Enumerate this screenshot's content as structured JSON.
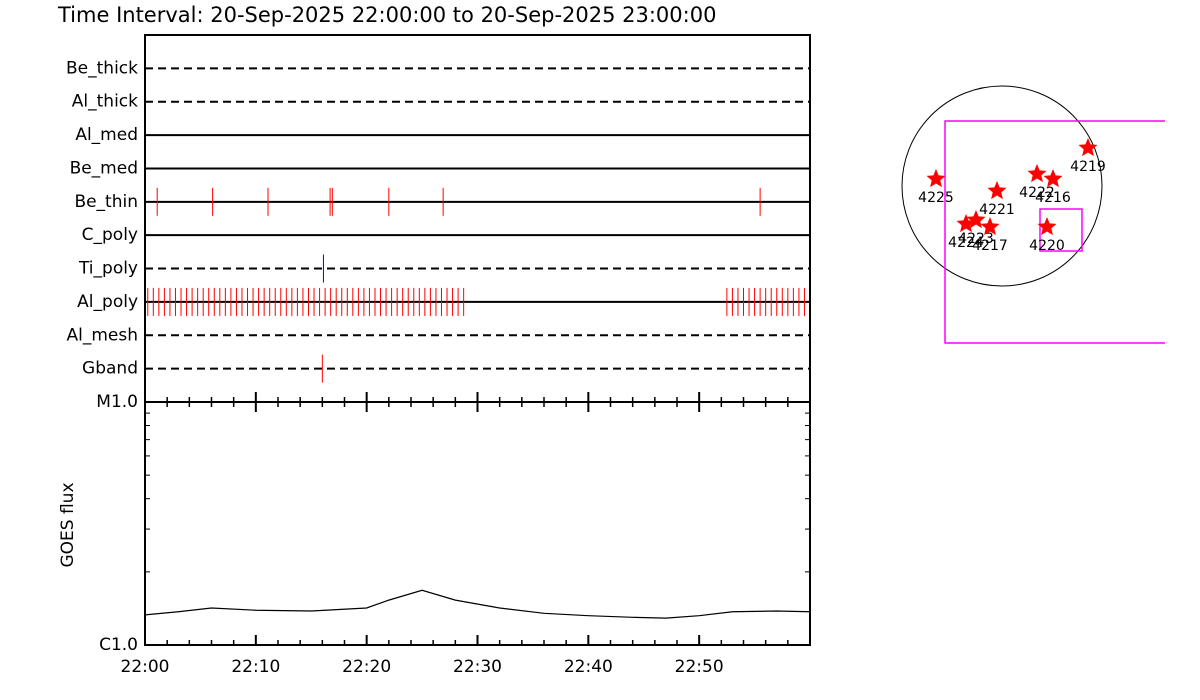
{
  "chart_data": [
    {
      "type": "timeline",
      "title": "Time Interval: 20-Sep-2025 22:00:00 to 20-Sep-2025 23:00:00",
      "xlim": [
        0,
        60
      ],
      "rows": [
        {
          "name": "Be_thick",
          "line": "dashed",
          "color": "#ff0000",
          "events": []
        },
        {
          "name": "Al_thick",
          "line": "dashed",
          "color": "#ff0000",
          "events": []
        },
        {
          "name": "Al_med",
          "line": "solid",
          "color": "#ff0000",
          "events": []
        },
        {
          "name": "Be_med",
          "line": "solid",
          "color": "#ff0000",
          "events": []
        },
        {
          "name": "Be_thin",
          "line": "solid",
          "color": "#ff0000",
          "events": [
            1.1,
            6.1,
            11.1,
            16.7,
            16.9,
            22.0,
            26.9,
            55.5
          ]
        },
        {
          "name": "C_poly",
          "line": "solid",
          "color": "#ff0000",
          "events": []
        },
        {
          "name": "Ti_poly",
          "line": "dashed",
          "color": "#0000ff",
          "events": [
            16.1
          ]
        },
        {
          "name": "Al_poly",
          "line": "solid",
          "color": "#ff0000",
          "events": [
            0.25,
            0.75,
            1.25,
            1.75,
            2.25,
            2.75,
            3.25,
            3.75,
            4.25,
            4.75,
            5.25,
            5.75,
            6.25,
            6.75,
            7.25,
            7.75,
            8.25,
            8.75,
            9.25,
            9.75,
            10.25,
            10.75,
            11.25,
            11.75,
            12.25,
            12.75,
            13.25,
            13.75,
            14.25,
            14.75,
            15.25,
            15.75,
            16.25,
            16.75,
            17.25,
            17.75,
            18.25,
            18.75,
            19.25,
            19.75,
            20.25,
            20.75,
            21.25,
            21.75,
            22.25,
            22.75,
            23.25,
            23.75,
            24.25,
            24.75,
            25.25,
            25.75,
            26.25,
            26.75,
            27.25,
            27.75,
            28.25,
            28.75,
            52.5,
            53.0,
            53.5,
            54.0,
            54.5,
            55.0,
            55.5,
            56.0,
            56.5,
            57.0,
            57.5,
            58.0,
            58.5,
            59.0,
            59.5
          ]
        },
        {
          "name": "Al_mesh",
          "line": "dashed",
          "color": "#ff0000",
          "events": []
        },
        {
          "name": "Gband",
          "line": "dashed",
          "color": "#ff0000",
          "events": [
            16.0
          ]
        }
      ]
    },
    {
      "type": "line",
      "y_label": "GOES flux",
      "log_scale": true,
      "color": "#000000",
      "x": [
        0,
        3,
        6,
        10,
        15,
        20,
        22,
        25,
        28,
        32,
        36,
        40,
        44,
        47,
        50,
        53,
        57,
        60
      ],
      "values": [
        1.33e-06,
        1.37e-06,
        1.42e-06,
        1.39e-06,
        1.38e-06,
        1.42e-06,
        1.53e-06,
        1.68e-06,
        1.53e-06,
        1.42e-06,
        1.35e-06,
        1.32e-06,
        1.3e-06,
        1.29e-06,
        1.32e-06,
        1.37e-06,
        1.38e-06,
        1.37e-06
      ],
      "xlim": [
        0,
        60
      ],
      "xticks": [
        {
          "value": 0,
          "label": "22:00"
        },
        {
          "value": 10,
          "label": "22:10"
        },
        {
          "value": 20,
          "label": "22:20"
        },
        {
          "value": 30,
          "label": "22:30"
        },
        {
          "value": 40,
          "label": "22:40"
        },
        {
          "value": 50,
          "label": "22:50"
        }
      ],
      "xminorticks": [
        2,
        4,
        6,
        8,
        12,
        14,
        16,
        18,
        22,
        24,
        26,
        28,
        32,
        34,
        36,
        38,
        42,
        44,
        46,
        48,
        52,
        54,
        56,
        58
      ],
      "ylim": [
        1e-06,
        1e-05
      ],
      "yticks": [
        {
          "value": 1e-06,
          "label": "C1.0"
        },
        {
          "value": 1e-05,
          "label": "M1.0"
        }
      ],
      "yminorticks": [
        2e-06,
        3e-06,
        4e-06,
        5e-06,
        6e-06,
        7e-06,
        8e-06,
        9e-06
      ]
    }
  ],
  "map": {
    "regions": [
      "4225",
      "4224",
      "4223",
      "4217",
      "4221",
      "4222",
      "4216",
      "4219",
      "4220"
    ]
  }
}
